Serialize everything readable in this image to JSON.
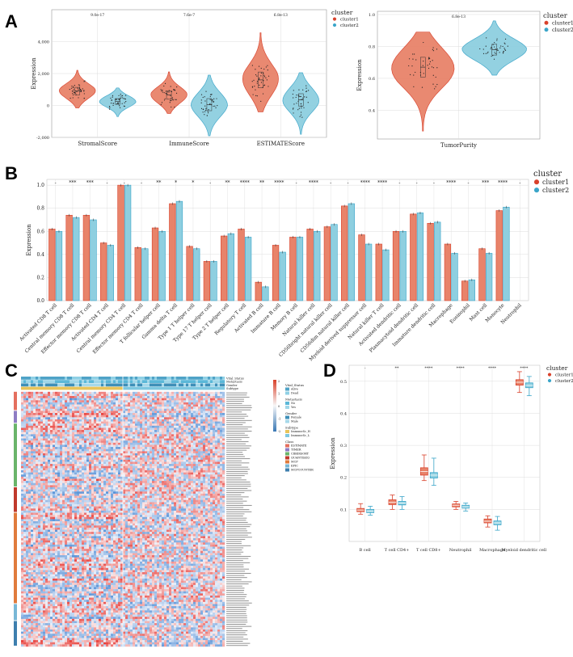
{
  "colors": {
    "cluster1": "#e8836a",
    "cluster2": "#8ecfe0",
    "c1_line": "#d9412b",
    "c2_line": "#3aa5c9",
    "grid": "#dcdcdc",
    "axis": "#555555"
  },
  "legend": {
    "title": "cluster",
    "items": [
      "cluster1",
      "cluster2"
    ]
  },
  "panels": {
    "A": "A",
    "B": "B",
    "C": "C",
    "D": "D"
  },
  "chart_data": [
    {
      "id": "A1",
      "type": "violin",
      "ylabel": "Expression",
      "ylim": [
        -2000,
        6000
      ],
      "yticks": [
        -2000,
        0,
        2000,
        4000
      ],
      "ytick_labels": [
        "-2,000",
        "0",
        "2,000",
        "4,000"
      ],
      "categories": [
        "StromalScore",
        "ImmuneScore",
        "ESTIMATEScore"
      ],
      "pvalues": [
        "9.0e-17",
        "7.6e-7",
        "6.8e-13"
      ],
      "series": [
        {
          "name": "cluster1",
          "medians": [
            900,
            650,
            1600
          ],
          "ranges": [
            [
              -150,
              2200
            ],
            [
              -500,
              2100
            ],
            [
              -400,
              4550
            ]
          ]
        },
        {
          "name": "cluster2",
          "medians": [
            250,
            50,
            350
          ],
          "ranges": [
            [
              -700,
              1100
            ],
            [
              -1900,
              1900
            ],
            [
              -1800,
              2050
            ]
          ]
        }
      ]
    },
    {
      "id": "A2",
      "type": "violin",
      "ylabel": "Expression",
      "xlabel": "TumorPurity",
      "ylim": [
        0.22,
        1.02
      ],
      "yticks": [
        0.4,
        0.6,
        0.8,
        1.0
      ],
      "ytick_labels": [
        "0.4",
        "0.6",
        "0.8",
        "1.0"
      ],
      "categories": [
        "TumorPurity"
      ],
      "pvalues": [
        "6.8e-13"
      ],
      "series": [
        {
          "name": "cluster1",
          "medians": [
            0.67
          ],
          "ranges": [
            [
              0.27,
              0.89
            ]
          ]
        },
        {
          "name": "cluster2",
          "medians": [
            0.78
          ],
          "ranges": [
            [
              0.62,
              0.96
            ]
          ]
        }
      ]
    },
    {
      "id": "B",
      "type": "bar",
      "ylabel": "Expression",
      "ylim": [
        0,
        1.05
      ],
      "yticks": [
        0.0,
        0.2,
        0.4,
        0.6,
        0.8,
        1.0
      ],
      "ytick_labels": [
        "0.0",
        "0.2",
        "0.4",
        "0.6",
        "0.8",
        "1.0"
      ],
      "categories": [
        "Activated CD8 T cell",
        "Central memory CD8 T cell",
        "Effector memory CD8 T cell",
        "Activated CD4 T cell",
        "Central memory CD4 T cell",
        "Effector memory CD4 T cell",
        "T follicular helper cell",
        "Gamma delta T cell",
        "Type 1 T helper cell",
        "Type 17 T helper cell",
        "Type 2 T helper cell",
        "Regulatory T cell",
        "Activated B cell",
        "Immature B cell",
        "Memory B cell",
        "Natural killer cell",
        "CD56bright natural killer cell",
        "CD56dim natural killer cell",
        "Myeloid derived suppressor cell",
        "Natural killer T cell",
        "Activated dendritic cell",
        "Plasmacytoid dendritic cell",
        "Immature dendritic cell",
        "Macrophage",
        "Eosinophil",
        "Mast cell",
        "Monocyte",
        "Neutrophil"
      ],
      "significance": [
        "-",
        "***",
        "***",
        "-",
        "-",
        "-",
        "**",
        "*",
        "*",
        "-",
        "**",
        "****",
        "**",
        "****",
        "-",
        "****",
        "-",
        "-",
        "****",
        "****",
        "-",
        "-",
        "-",
        "****",
        "-",
        "***",
        "****",
        "-"
      ],
      "series": [
        {
          "name": "cluster1",
          "values": [
            0.62,
            0.74,
            0.74,
            0.5,
            1.0,
            0.46,
            0.63,
            0.84,
            0.47,
            0.34,
            0.56,
            0.62,
            0.16,
            0.48,
            0.55,
            0.62,
            0.64,
            0.82,
            0.57,
            0.49,
            0.6,
            0.75,
            0.67,
            0.49,
            0.17,
            0.45,
            0.78,
            0.0
          ]
        },
        {
          "name": "cluster2",
          "values": [
            0.6,
            0.72,
            0.7,
            0.48,
            1.0,
            0.45,
            0.6,
            0.86,
            0.45,
            0.34,
            0.58,
            0.55,
            0.12,
            0.42,
            0.55,
            0.6,
            0.66,
            0.84,
            0.49,
            0.44,
            0.6,
            0.76,
            0.68,
            0.41,
            0.18,
            0.41,
            0.81,
            0.0
          ]
        }
      ]
    },
    {
      "id": "C",
      "type": "heatmap",
      "annotation_rows": [
        "Vital_Status",
        "Metastasis",
        "Gender",
        "Subtype"
      ],
      "legends": [
        {
          "title": "Vital_Status",
          "items": [
            "Alive",
            "Dead"
          ]
        },
        {
          "title": "Metastasis",
          "items": [
            "No",
            "Yes"
          ]
        },
        {
          "title": "Gender",
          "items": [
            "Female",
            "Male"
          ]
        },
        {
          "title": "Subtype",
          "items": [
            "ImmuneSc_H",
            "ImmuneSc_L"
          ]
        },
        {
          "title": "Class",
          "items": [
            "ESTIMATE",
            "TIMER",
            "CIBERSORT",
            "QUANTISEQ",
            "MCP",
            "EPIC",
            "MCPCOUNTER"
          ]
        }
      ],
      "color_scale_ticks": [
        "2",
        "1",
        "0",
        "-1",
        "-2"
      ]
    },
    {
      "id": "D",
      "type": "boxplot",
      "ylabel": "Expression",
      "ylim": [
        0,
        0.55
      ],
      "yticks": [
        0.1,
        0.2,
        0.3,
        0.4,
        0.5
      ],
      "ytick_labels": [
        "0.1",
        "0.2",
        "0.3",
        "0.4",
        "0.5"
      ],
      "categories": [
        "B cell",
        "T cell CD4+",
        "T cell CD8+",
        "Neutrophil",
        "Macrophage",
        "Myeloid dendritic cell"
      ],
      "significance": [
        "-",
        "**",
        "****",
        "****",
        "****",
        "****"
      ],
      "series": [
        {
          "name": "cluster1",
          "boxes": [
            [
              0.085,
              0.093,
              0.098,
              0.103,
              0.118
            ],
            [
              0.1,
              0.115,
              0.122,
              0.13,
              0.145
            ],
            [
              0.19,
              0.207,
              0.218,
              0.23,
              0.27
            ],
            [
              0.1,
              0.108,
              0.113,
              0.117,
              0.125
            ],
            [
              0.045,
              0.058,
              0.063,
              0.07,
              0.08
            ],
            [
              0.465,
              0.488,
              0.497,
              0.505,
              0.53
            ]
          ]
        },
        {
          "name": "cluster2",
          "boxes": [
            [
              0.082,
              0.09,
              0.095,
              0.1,
              0.11
            ],
            [
              0.1,
              0.114,
              0.12,
              0.125,
              0.14
            ],
            [
              0.175,
              0.198,
              0.207,
              0.215,
              0.26
            ],
            [
              0.095,
              0.104,
              0.108,
              0.113,
              0.12
            ],
            [
              0.035,
              0.052,
              0.058,
              0.064,
              0.078
            ],
            [
              0.455,
              0.48,
              0.487,
              0.495,
              0.515
            ]
          ]
        }
      ]
    }
  ]
}
